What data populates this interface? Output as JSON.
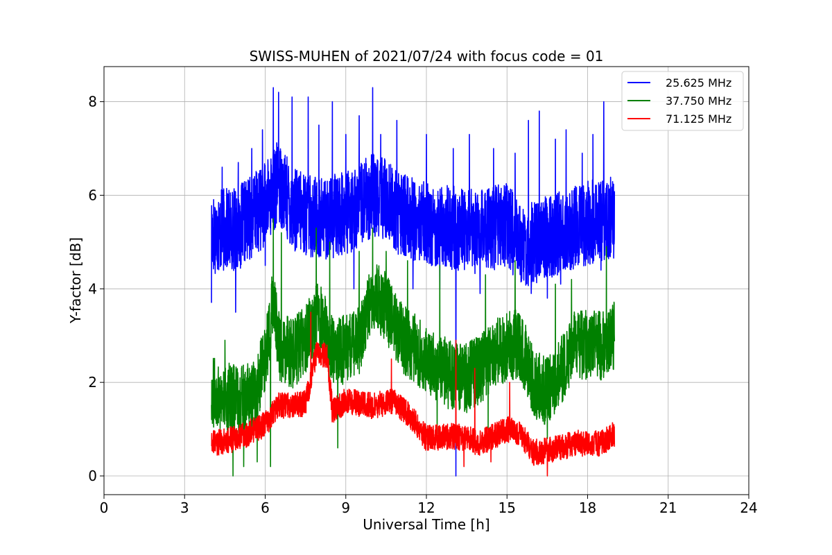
{
  "chart_data": {
    "type": "line",
    "title": "SWISS-MUHEN of 2021/07/24 with focus code = 01",
    "xlabel": "Universal Time [h]",
    "ylabel": "Y-factor [dB]",
    "xlim": [
      0,
      24
    ],
    "ylim": [
      -0.4,
      8.75
    ],
    "xticks": [
      0,
      3,
      6,
      9,
      12,
      15,
      18,
      21,
      24
    ],
    "yticks": [
      0,
      2,
      4,
      6,
      8
    ],
    "grid": true,
    "legend_position": "top-right",
    "x_start": 4.0,
    "x_end": 19.0,
    "series": [
      {
        "name": "25.625 MHz",
        "color": "#0000ff",
        "baseline": [
          [
            4.0,
            5.2
          ],
          [
            5.0,
            5.3
          ],
          [
            6.0,
            5.8
          ],
          [
            6.5,
            6.3
          ],
          [
            7.0,
            5.7
          ],
          [
            8.0,
            5.5
          ],
          [
            9.0,
            5.6
          ],
          [
            10.0,
            6.0
          ],
          [
            10.5,
            5.9
          ],
          [
            11.0,
            5.6
          ],
          [
            12.0,
            5.4
          ],
          [
            13.0,
            5.3
          ],
          [
            14.0,
            5.2
          ],
          [
            15.0,
            5.4
          ],
          [
            15.5,
            4.9
          ],
          [
            16.5,
            5.1
          ],
          [
            17.5,
            5.3
          ],
          [
            18.5,
            5.5
          ],
          [
            19.0,
            5.5
          ]
        ],
        "noise": 0.9,
        "spikes": [
          [
            4.4,
            6.6
          ],
          [
            5.0,
            6.7
          ],
          [
            5.5,
            7.0
          ],
          [
            5.9,
            7.4
          ],
          [
            6.3,
            8.3
          ],
          [
            6.5,
            8.2
          ],
          [
            7.0,
            8.1
          ],
          [
            7.6,
            8.1
          ],
          [
            8.0,
            7.5
          ],
          [
            8.5,
            8.0
          ],
          [
            9.0,
            7.3
          ],
          [
            9.5,
            7.7
          ],
          [
            10.0,
            8.3
          ],
          [
            10.3,
            7.3
          ],
          [
            10.9,
            7.6
          ],
          [
            11.5,
            7.5
          ],
          [
            12.0,
            7.3
          ],
          [
            13.0,
            7.0
          ],
          [
            13.6,
            7.3
          ],
          [
            14.5,
            7.0
          ],
          [
            15.3,
            6.9
          ],
          [
            15.8,
            7.6
          ],
          [
            16.2,
            7.8
          ],
          [
            16.8,
            7.2
          ],
          [
            17.2,
            7.4
          ],
          [
            17.8,
            6.9
          ],
          [
            18.2,
            7.3
          ],
          [
            18.6,
            8.0
          ]
        ],
        "dips": [
          [
            4.0,
            3.7
          ],
          [
            4.9,
            3.5
          ],
          [
            6.0,
            4.5
          ],
          [
            9.3,
            4.0
          ],
          [
            11.5,
            4.0
          ],
          [
            12.5,
            4.0
          ],
          [
            13.1,
            0.0
          ],
          [
            14.0,
            3.9
          ],
          [
            15.9,
            3.9
          ],
          [
            16.5,
            3.8
          ],
          [
            17.0,
            4.1
          ],
          [
            18.5,
            4.4
          ]
        ]
      },
      {
        "name": "37.750 MHz",
        "color": "#008000",
        "baseline": [
          [
            4.0,
            1.8
          ],
          [
            5.0,
            1.6
          ],
          [
            5.6,
            1.7
          ],
          [
            6.0,
            2.5
          ],
          [
            6.3,
            3.8
          ],
          [
            6.5,
            2.8
          ],
          [
            7.0,
            2.6
          ],
          [
            7.5,
            2.9
          ],
          [
            8.0,
            3.5
          ],
          [
            8.5,
            2.7
          ],
          [
            9.0,
            2.7
          ],
          [
            9.5,
            2.9
          ],
          [
            10.0,
            3.9
          ],
          [
            10.5,
            3.6
          ],
          [
            11.0,
            3.0
          ],
          [
            12.0,
            2.5
          ],
          [
            12.5,
            2.3
          ],
          [
            13.0,
            2.1
          ],
          [
            13.5,
            2.1
          ],
          [
            14.0,
            2.3
          ],
          [
            15.0,
            2.8
          ],
          [
            15.5,
            2.8
          ],
          [
            16.0,
            2.0
          ],
          [
            16.5,
            1.8
          ],
          [
            17.0,
            2.2
          ],
          [
            17.5,
            2.8
          ],
          [
            18.5,
            2.8
          ],
          [
            19.0,
            3.0
          ]
        ],
        "noise": 0.75,
        "spikes": [
          [
            4.5,
            2.9
          ],
          [
            6.3,
            5.5
          ],
          [
            6.6,
            5.2
          ],
          [
            7.9,
            5.3
          ],
          [
            8.4,
            5.0
          ],
          [
            9.5,
            4.8
          ],
          [
            10.0,
            5.3
          ],
          [
            10.5,
            4.8
          ],
          [
            11.3,
            4.6
          ],
          [
            12.5,
            4.5
          ],
          [
            14.2,
            4.3
          ],
          [
            15.3,
            4.6
          ],
          [
            16.8,
            4.1
          ],
          [
            17.4,
            4.2
          ],
          [
            18.7,
            4.9
          ]
        ],
        "dips": [
          [
            4.8,
            0.0
          ],
          [
            5.2,
            0.2
          ],
          [
            5.7,
            0.3
          ],
          [
            6.2,
            0.2
          ],
          [
            8.7,
            0.6
          ],
          [
            12.4,
            0.9
          ],
          [
            14.3,
            1.0
          ],
          [
            16.5,
            0.8
          ]
        ]
      },
      {
        "name": "71.125 MHz",
        "color": "#ff0000",
        "baseline": [
          [
            4.0,
            0.7
          ],
          [
            5.0,
            0.8
          ],
          [
            6.0,
            1.1
          ],
          [
            6.5,
            1.5
          ],
          [
            7.5,
            1.55
          ],
          [
            7.9,
            2.6
          ],
          [
            8.3,
            2.6
          ],
          [
            8.5,
            1.4
          ],
          [
            9.0,
            1.6
          ],
          [
            10.0,
            1.5
          ],
          [
            10.8,
            1.6
          ],
          [
            11.5,
            1.2
          ],
          [
            12.0,
            0.8
          ],
          [
            13.0,
            0.85
          ],
          [
            13.5,
            0.8
          ],
          [
            14.0,
            0.7
          ],
          [
            15.0,
            1.0
          ],
          [
            15.5,
            0.9
          ],
          [
            16.0,
            0.5
          ],
          [
            17.0,
            0.6
          ],
          [
            17.5,
            0.7
          ],
          [
            18.5,
            0.7
          ],
          [
            19.0,
            0.9
          ]
        ],
        "noise": 0.28,
        "spikes": [
          [
            7.7,
            3.5
          ],
          [
            10.7,
            2.5
          ],
          [
            13.1,
            2.9
          ],
          [
            13.8,
            2.3
          ],
          [
            15.1,
            2.0
          ]
        ],
        "dips": [
          [
            16.5,
            0.0
          ],
          [
            13.4,
            0.2
          ],
          [
            14.4,
            0.3
          ]
        ]
      }
    ]
  }
}
